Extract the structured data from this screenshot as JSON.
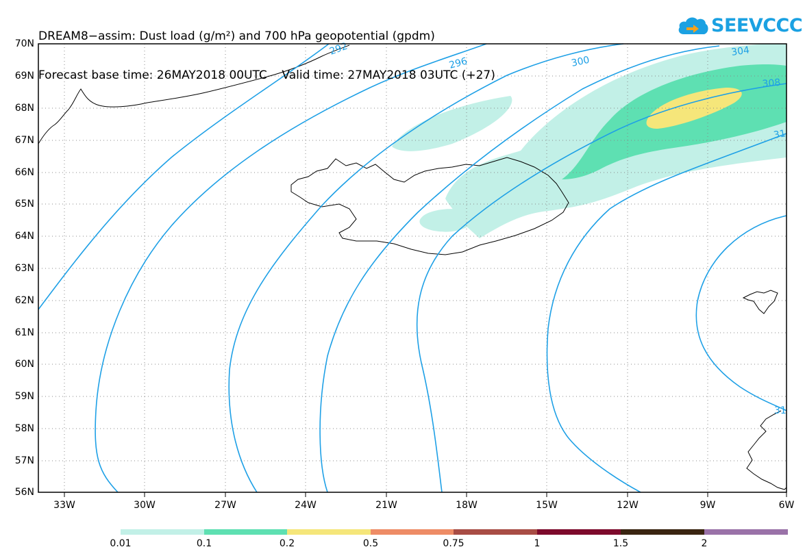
{
  "title": {
    "line1": "DREAM8−assim: Dust load (g/m²) and 700 hPa geopotential (gpdm)",
    "line2": "Forecast base time: 26MAY2018 00UTC    Valid time: 27MAY2018 03UTC (+27)"
  },
  "logo": {
    "text": "SEEVCCC",
    "icon": "cloud-icon",
    "colors": {
      "cloud": "#1ba1e2",
      "arrow": "#f7a21b",
      "text": "#1ba1e2"
    }
  },
  "map": {
    "lat_range": [
      56,
      70
    ],
    "lon_range": [
      -34.5,
      -6
    ],
    "lat_labels": [
      "70N",
      "69N",
      "68N",
      "67N",
      "66N",
      "65N",
      "64N",
      "63N",
      "62N",
      "61N",
      "60N",
      "59N",
      "58N",
      "57N",
      "56N"
    ],
    "lon_labels": [
      "33W",
      "30W",
      "27W",
      "24W",
      "21W",
      "18W",
      "15W",
      "12W",
      "9W",
      "6W"
    ],
    "contour_labels": [
      "292",
      "296",
      "300",
      "304",
      "308",
      "31",
      "31"
    ],
    "contour_color": "#1ea0e6"
  },
  "colorbar": {
    "colors": [
      "#c2f0e7",
      "#5ee0b2",
      "#f5e67a",
      "#ee8c66",
      "#a84d45",
      "#7d0a2c",
      "#3a2511",
      "#9a72a8"
    ],
    "labels": [
      "0.01",
      "0.1",
      "0.2",
      "0.5",
      "0.75",
      "1",
      "1.5",
      "2"
    ]
  }
}
